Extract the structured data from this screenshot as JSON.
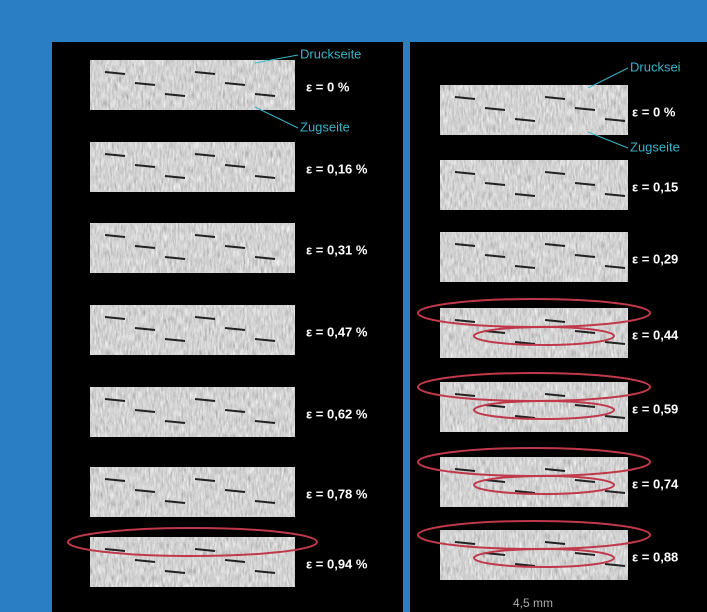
{
  "left_panel": {
    "compression_side": "Druckseite",
    "tension_side": "Zugseite",
    "strain_labels": [
      "ε = 0 %",
      "ε = 0,16 %",
      "ε = 0,31 %",
      "ε = 0,47 %",
      "ε = 0,62 %",
      "ε = 0,78 %",
      "ε = 0,94 %"
    ]
  },
  "right_panel": {
    "compression_side": "Drucksei",
    "tension_side": "Zugseite",
    "strain_labels": [
      "ε = 0 %",
      "ε = 0,15",
      "ε = 0,29",
      "ε = 0,44",
      "ε = 0,59",
      "ε = 0,74",
      "ε = 0,88"
    ],
    "scale_bar": "4,5 mm"
  }
}
